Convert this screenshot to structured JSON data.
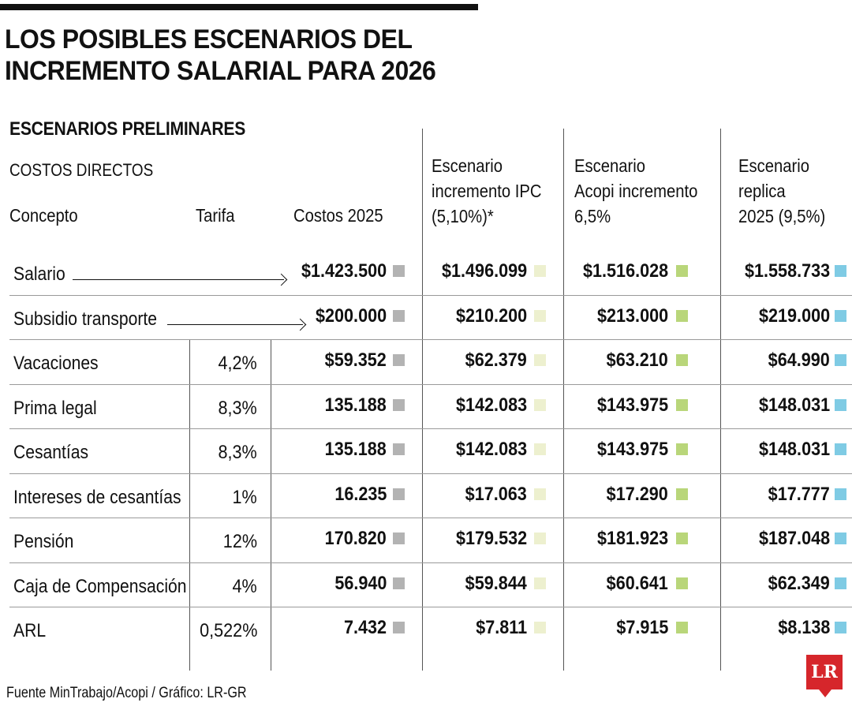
{
  "title_line1": "LOS POSIBLES ESCENARIOS DEL",
  "title_line2": "INCREMENTO SALARIAL PARA 2026",
  "subtitle": "ESCENARIOS PRELIMINARES",
  "section": "COSTOS DIRECTOS",
  "headers": {
    "concepto": "Concepto",
    "tarifa": "Tarifa",
    "costos": "Costos 2025",
    "ipc": [
      "Escenario",
      "incremento IPC",
      "(5,10%)*"
    ],
    "acopi": [
      "Escenario",
      "Acopi incremento",
      "6,5%"
    ],
    "replica": [
      "Escenario",
      "replica",
      "2025 (9,5%)"
    ]
  },
  "colors": {
    "costos": "#b3b3b3",
    "ipc": "#edf0cf",
    "acopi": "#b9d67a",
    "replica": "#7fcbe4",
    "logo": "#d6262b"
  },
  "source": "Fuente MinTrabajo/Acopi / Gráfico: LR-GR",
  "logo": "LR",
  "chart_data": {
    "type": "table",
    "columns": [
      "Concepto",
      "Tarifa",
      "Costos 2025",
      "Escenario incremento IPC (5,10%)*",
      "Escenario Acopi incremento 6,5%",
      "Escenario replica 2025 (9,5%)"
    ],
    "rows": [
      {
        "concepto": "Salario",
        "tarifa": "",
        "costos": "$1.423.500",
        "ipc": "$1.496.099",
        "acopi": "$1.516.028",
        "replica": "$1.558.733"
      },
      {
        "concepto": "Subsidio transporte",
        "tarifa": "",
        "costos": "$200.000",
        "ipc": "$210.200",
        "acopi": "$213.000",
        "replica": "$219.000"
      },
      {
        "concepto": "Vacaciones",
        "tarifa": "4,2%",
        "costos": "$59.352",
        "ipc": "$62.379",
        "acopi": "$63.210",
        "replica": "$64.990"
      },
      {
        "concepto": "Prima legal",
        "tarifa": "8,3%",
        "costos": "135.188",
        "ipc": "$142.083",
        "acopi": "$143.975",
        "replica": "$148.031"
      },
      {
        "concepto": "Cesantías",
        "tarifa": "8,3%",
        "costos": "135.188",
        "ipc": "$142.083",
        "acopi": "$143.975",
        "replica": "$148.031"
      },
      {
        "concepto": "Intereses de cesantías",
        "tarifa": "1%",
        "costos": "16.235",
        "ipc": "$17.063",
        "acopi": "$17.290",
        "replica": "$17.777"
      },
      {
        "concepto": "Pensión",
        "tarifa": "12%",
        "costos": "170.820",
        "ipc": "$179.532",
        "acopi": "$181.923",
        "replica": "$187.048"
      },
      {
        "concepto": "Caja de Compensación",
        "tarifa": "4%",
        "costos": "56.940",
        "ipc": "$59.844",
        "acopi": "$60.641",
        "replica": "$62.349"
      },
      {
        "concepto": "ARL",
        "tarifa": "0,522%",
        "costos": "7.432",
        "ipc": "$7.811",
        "acopi": "$7.915",
        "replica": "$8.138"
      }
    ]
  }
}
